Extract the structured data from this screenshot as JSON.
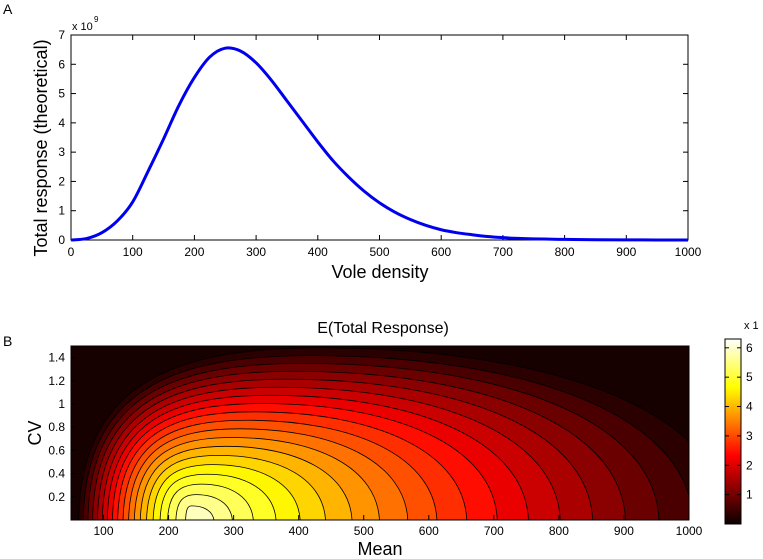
{
  "chart_data": [
    {
      "type": "line",
      "panel_label": "A",
      "xlabel": "Vole density",
      "ylabel": "Total response (theoretical)",
      "y_multiplier": "x 10",
      "y_multiplier_exp": "9",
      "xlim": [
        0,
        1000
      ],
      "ylim": [
        0,
        7
      ],
      "xticks": [
        "0",
        "100",
        "200",
        "300",
        "400",
        "500",
        "600",
        "700",
        "800",
        "900",
        "1000"
      ],
      "yticks": [
        "0",
        "1",
        "2",
        "3",
        "4",
        "5",
        "6",
        "7"
      ],
      "grid": false,
      "series": [
        {
          "color": "#0000ee",
          "x": [
            0,
            25,
            50,
            75,
            100,
            125,
            150,
            175,
            200,
            225,
            250,
            275,
            300,
            325,
            350,
            375,
            400,
            425,
            450,
            475,
            500,
            525,
            550,
            575,
            600,
            625,
            650,
            675,
            700,
            725,
            750,
            775,
            800,
            850,
            900,
            950,
            1000
          ],
          "y": [
            0,
            0.05,
            0.25,
            0.65,
            1.3,
            2.35,
            3.45,
            4.6,
            5.55,
            6.25,
            6.55,
            6.45,
            6.05,
            5.45,
            4.75,
            4.05,
            3.35,
            2.7,
            2.15,
            1.67,
            1.27,
            0.95,
            0.7,
            0.5,
            0.35,
            0.25,
            0.18,
            0.12,
            0.08,
            0.055,
            0.04,
            0.03,
            0.02,
            0.01,
            0.005,
            0.002,
            0.001
          ]
        }
      ]
    },
    {
      "type": "heatmap",
      "panel_label": "B",
      "title": "E(Total Response)",
      "xlabel": "Mean",
      "ylabel": "CV",
      "xlim": [
        50,
        1000
      ],
      "ylim": [
        0,
        1.5
      ],
      "xticks": [
        "100",
        "200",
        "300",
        "400",
        "500",
        "600",
        "700",
        "800",
        "900",
        "1000"
      ],
      "yticks": [
        "0.2",
        "0.4",
        "0.6",
        "0.8",
        "1",
        "1.2",
        "1.4"
      ],
      "colormap": "hot",
      "colorbar": {
        "label": "x 1",
        "ticks": [
          "1",
          "2",
          "3",
          "4",
          "5",
          "6"
        ],
        "range": [
          0,
          6.3
        ]
      },
      "peak": {
        "mean": 250,
        "cv": 0,
        "value": 6.2
      }
    }
  ]
}
